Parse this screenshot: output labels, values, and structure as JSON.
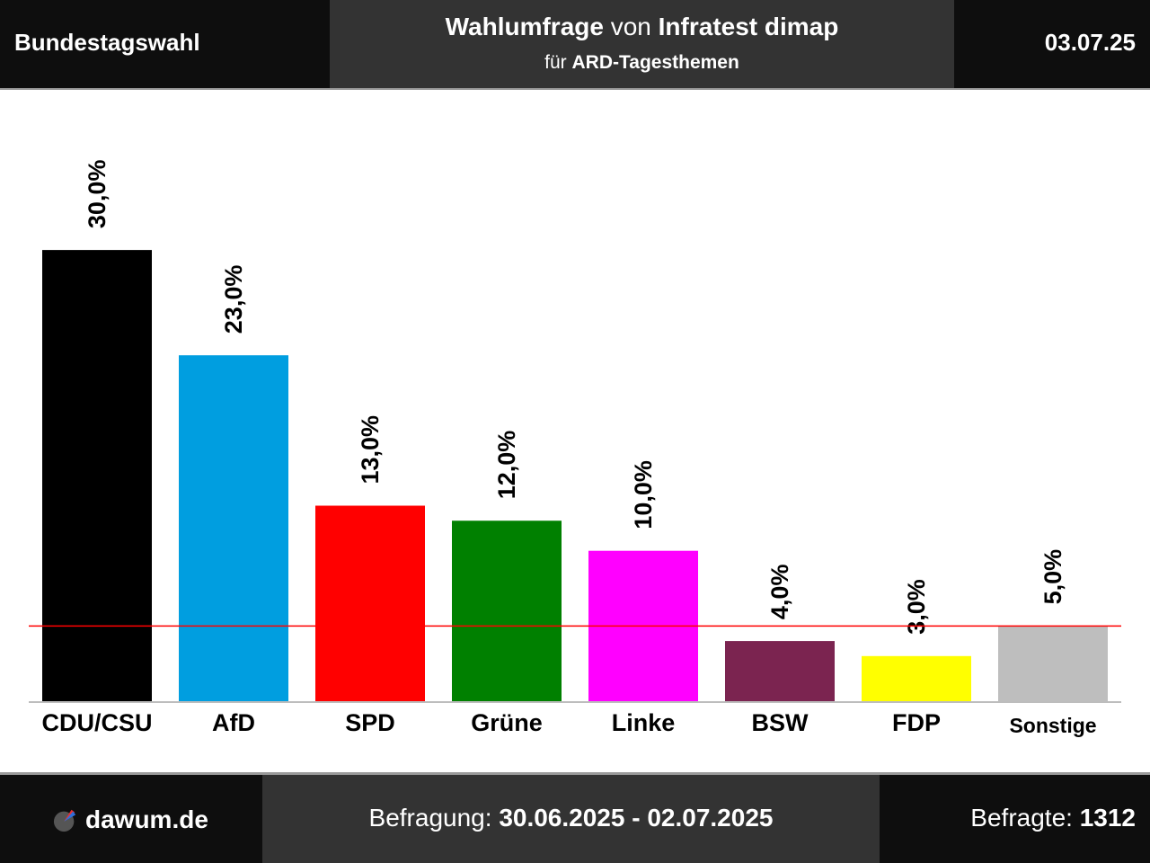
{
  "header": {
    "left_title": "Bundestagswahl",
    "survey_word": "Wahlumfrage",
    "von": " von ",
    "institute": "Infratest dimap",
    "fuer": "für ",
    "client": "ARD-Tagesthemen",
    "date": "03.07.25"
  },
  "footer": {
    "site": "dawum.de",
    "period_label": "Befragung: ",
    "period": "30.06.2025 - 02.07.2025",
    "respondents_label": "Befragte: ",
    "respondents": "1312"
  },
  "chart_data": {
    "type": "bar",
    "categories": [
      "CDU/CSU",
      "AfD",
      "SPD",
      "Grüne",
      "Linke",
      "BSW",
      "FDP",
      "Sonstige"
    ],
    "values": [
      30.0,
      23.0,
      13.0,
      12.0,
      10.0,
      4.0,
      3.0,
      5.0
    ],
    "value_labels": [
      "30,0%",
      "23,0%",
      "13,0%",
      "12,0%",
      "10,0%",
      "4,0%",
      "3,0%",
      "5,0%"
    ],
    "colors": [
      "#000000",
      "#009ee0",
      "#ff0000",
      "#008000",
      "#ff00ff",
      "#7b2450",
      "#ffff00",
      "#bebebe"
    ],
    "threshold": 5.0,
    "threshold_color": "#ff0000",
    "grid": false
  }
}
